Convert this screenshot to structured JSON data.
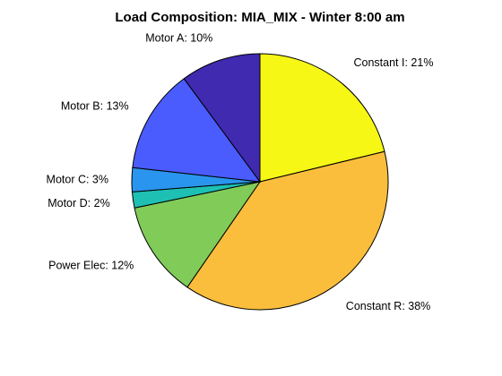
{
  "chart_data": {
    "type": "pie",
    "title": "Load Composition: MIA_MIX - Winter 8:00 am",
    "legend": "none",
    "slices": [
      {
        "label": "Constant I: 21%",
        "value": 21,
        "color": "#f7f716"
      },
      {
        "label": "Constant R: 38%",
        "value": 38,
        "color": "#fbbe3c"
      },
      {
        "label": "Power Elec: 12%",
        "value": 12,
        "color": "#81cc59"
      },
      {
        "label": "Motor D: 2%",
        "value": 2,
        "color": "#1ec0b4"
      },
      {
        "label": "Motor C: 3%",
        "value": 3,
        "color": "#2a95ee"
      },
      {
        "label": "Motor B: 13%",
        "value": 13,
        "color": "#4a5cfd"
      },
      {
        "label": "Motor A: 10%",
        "value": 10,
        "color": "#3f2ab0"
      }
    ]
  }
}
